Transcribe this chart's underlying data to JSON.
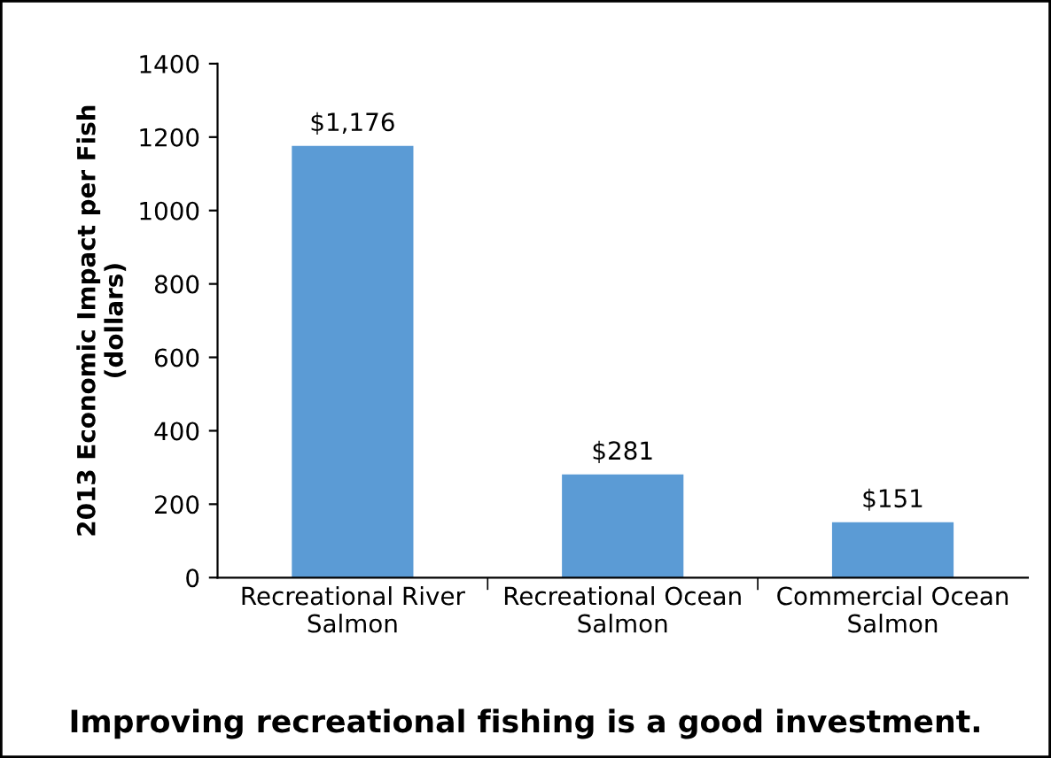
{
  "chart_data": {
    "type": "bar",
    "title": "Improving recreational fishing is a good investment.",
    "ylabel": "2013 Economic Impact per Fish\n(dollars)",
    "categories": [
      "Recreational River\nSalmon",
      "Recreational Ocean\nSalmon",
      "Commercial Ocean\nSalmon"
    ],
    "values": [
      1176,
      281,
      151
    ],
    "value_labels": [
      "$1,176",
      "$281",
      "$151"
    ],
    "color": "#5b9bd5",
    "ylim": [
      0,
      1400
    ],
    "yticks": [
      0,
      200,
      400,
      600,
      800,
      1000,
      1200,
      1400
    ],
    "grid": false,
    "legend": false
  }
}
